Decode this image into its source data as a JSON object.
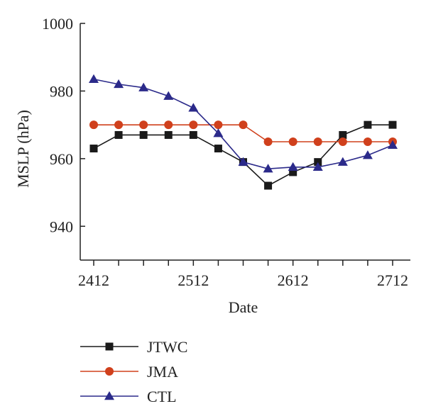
{
  "chart_data": {
    "type": "line",
    "xlabel": "Date",
    "ylabel": "MSLP (hPa)",
    "ylim": [
      930,
      1000
    ],
    "yticks": [
      940,
      960,
      980,
      1000
    ],
    "xticks": [
      {
        "label": "2412",
        "index": 0
      },
      {
        "label": "2512",
        "index": 4
      },
      {
        "label": "2612",
        "index": 8
      },
      {
        "label": "2712",
        "index": 12
      }
    ],
    "num_points": 13,
    "grid": false,
    "legend_position": "bottom-left",
    "series": [
      {
        "name": "JTWC",
        "color": "#1a1a1a",
        "marker": "square",
        "values": [
          963,
          967,
          967,
          967,
          967,
          963,
          959,
          952,
          956,
          959,
          967,
          970,
          970
        ]
      },
      {
        "name": "JMA",
        "color": "#d0401c",
        "marker": "circle",
        "values": [
          970,
          970,
          970,
          970,
          970,
          970,
          970,
          965,
          965,
          965,
          965,
          965,
          965
        ]
      },
      {
        "name": "CTL",
        "color": "#2b2a8a",
        "marker": "triangle",
        "values": [
          983.5,
          982,
          981,
          978.5,
          975,
          967.5,
          959,
          957,
          957.5,
          957.5,
          959,
          961,
          964
        ]
      }
    ]
  }
}
